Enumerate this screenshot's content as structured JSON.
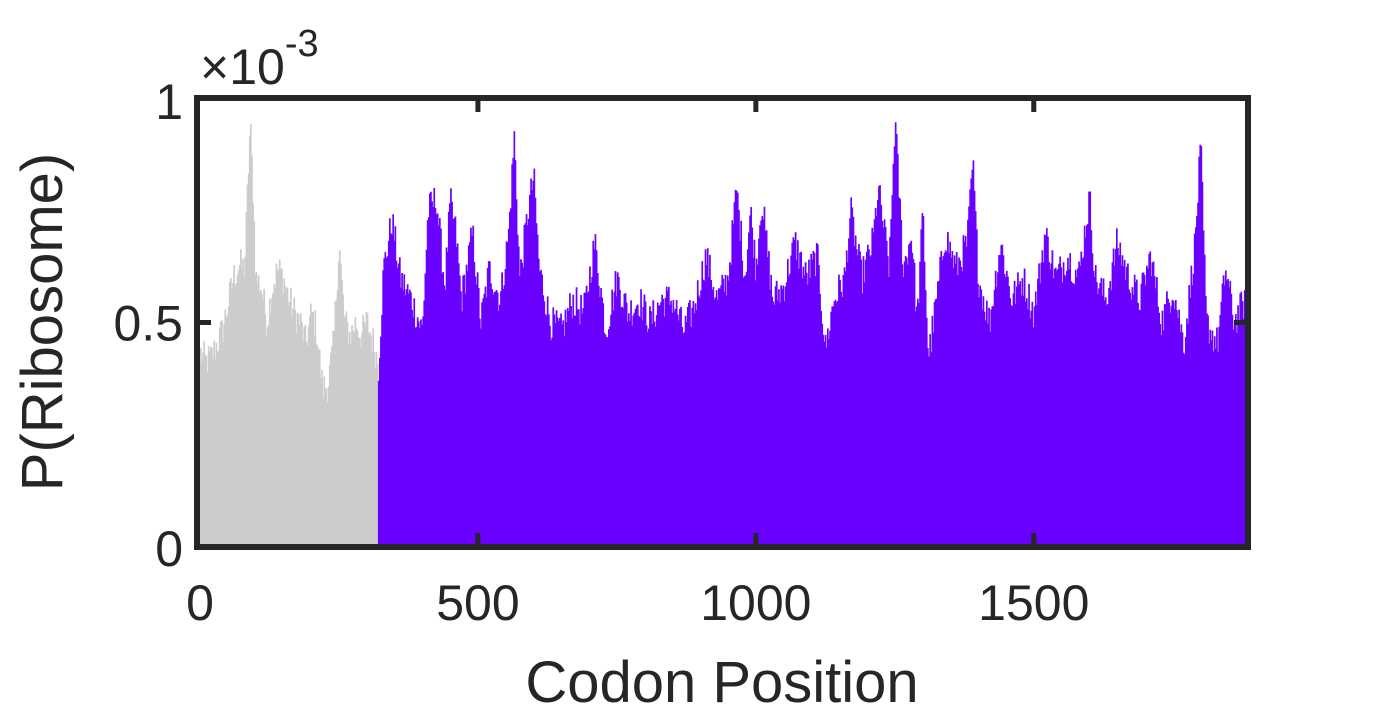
{
  "chart_data": {
    "type": "bar",
    "xlabel": "Codon Position",
    "ylabel": "P(Ribosome)",
    "y_exponent_label": "×10",
    "y_exponent_power": "-3",
    "xlim": [
      0,
      1880
    ],
    "ylim": [
      0,
      1
    ],
    "x_ticks": [
      0,
      500,
      1000,
      1500
    ],
    "x_tick_labels": [
      "0",
      "500",
      "1000",
      "1500"
    ],
    "y_ticks": [
      0,
      0.5,
      1
    ],
    "y_tick_labels": [
      "0",
      "0.5",
      "1"
    ],
    "grid": false,
    "legend": false,
    "series": [
      {
        "color": "#cccccc",
        "x_range": [
          1,
          320
        ],
        "control_points": [
          [
            1,
            0.43
          ],
          [
            10,
            0.41
          ],
          [
            20,
            0.42
          ],
          [
            30,
            0.45
          ],
          [
            40,
            0.48
          ],
          [
            50,
            0.54
          ],
          [
            60,
            0.6
          ],
          [
            70,
            0.63
          ],
          [
            80,
            0.62
          ],
          [
            90,
            0.95
          ],
          [
            95,
            0.8
          ],
          [
            100,
            0.6
          ],
          [
            110,
            0.58
          ],
          [
            120,
            0.5
          ],
          [
            130,
            0.58
          ],
          [
            140,
            0.62
          ],
          [
            150,
            0.6
          ],
          [
            160,
            0.55
          ],
          [
            170,
            0.52
          ],
          [
            180,
            0.5
          ],
          [
            190,
            0.45
          ],
          [
            200,
            0.52
          ],
          [
            210,
            0.48
          ],
          [
            220,
            0.35
          ],
          [
            230,
            0.36
          ],
          [
            240,
            0.45
          ],
          [
            250,
            0.68
          ],
          [
            255,
            0.58
          ],
          [
            260,
            0.5
          ],
          [
            270,
            0.47
          ],
          [
            280,
            0.5
          ],
          [
            290,
            0.47
          ],
          [
            300,
            0.5
          ],
          [
            310,
            0.46
          ],
          [
            320,
            0.41
          ]
        ]
      },
      {
        "color": "#6a00ff",
        "x_range": [
          321,
          1880
        ],
        "control_points": [
          [
            321,
            0.4
          ],
          [
            330,
            0.62
          ],
          [
            345,
            0.73
          ],
          [
            360,
            0.6
          ],
          [
            380,
            0.55
          ],
          [
            400,
            0.48
          ],
          [
            410,
            0.75
          ],
          [
            425,
            0.78
          ],
          [
            440,
            0.58
          ],
          [
            450,
            0.77
          ],
          [
            460,
            0.7
          ],
          [
            470,
            0.55
          ],
          [
            490,
            0.7
          ],
          [
            505,
            0.5
          ],
          [
            520,
            0.62
          ],
          [
            540,
            0.55
          ],
          [
            555,
            0.7
          ],
          [
            565,
            0.92
          ],
          [
            575,
            0.6
          ],
          [
            590,
            0.75
          ],
          [
            600,
            0.83
          ],
          [
            610,
            0.62
          ],
          [
            630,
            0.5
          ],
          [
            650,
            0.48
          ],
          [
            670,
            0.55
          ],
          [
            690,
            0.52
          ],
          [
            710,
            0.68
          ],
          [
            730,
            0.48
          ],
          [
            750,
            0.6
          ],
          [
            770,
            0.52
          ],
          [
            790,
            0.55
          ],
          [
            810,
            0.5
          ],
          [
            830,
            0.55
          ],
          [
            850,
            0.55
          ],
          [
            870,
            0.48
          ],
          [
            890,
            0.54
          ],
          [
            910,
            0.65
          ],
          [
            930,
            0.55
          ],
          [
            950,
            0.6
          ],
          [
            965,
            0.8
          ],
          [
            980,
            0.6
          ],
          [
            990,
            0.75
          ],
          [
            1000,
            0.62
          ],
          [
            1010,
            0.78
          ],
          [
            1030,
            0.55
          ],
          [
            1050,
            0.58
          ],
          [
            1070,
            0.68
          ],
          [
            1090,
            0.6
          ],
          [
            1110,
            0.65
          ],
          [
            1125,
            0.44
          ],
          [
            1140,
            0.55
          ],
          [
            1160,
            0.6
          ],
          [
            1170,
            0.75
          ],
          [
            1190,
            0.6
          ],
          [
            1210,
            0.68
          ],
          [
            1220,
            0.8
          ],
          [
            1240,
            0.62
          ],
          [
            1250,
            0.96
          ],
          [
            1265,
            0.62
          ],
          [
            1280,
            0.7
          ],
          [
            1290,
            0.5
          ],
          [
            1300,
            0.75
          ],
          [
            1310,
            0.42
          ],
          [
            1325,
            0.55
          ],
          [
            1340,
            0.7
          ],
          [
            1360,
            0.62
          ],
          [
            1380,
            0.68
          ],
          [
            1390,
            0.86
          ],
          [
            1400,
            0.6
          ],
          [
            1420,
            0.5
          ],
          [
            1440,
            0.68
          ],
          [
            1460,
            0.55
          ],
          [
            1480,
            0.6
          ],
          [
            1500,
            0.52
          ],
          [
            1520,
            0.7
          ],
          [
            1540,
            0.6
          ],
          [
            1560,
            0.65
          ],
          [
            1580,
            0.6
          ],
          [
            1600,
            0.78
          ],
          [
            1610,
            0.6
          ],
          [
            1630,
            0.55
          ],
          [
            1650,
            0.68
          ],
          [
            1670,
            0.6
          ],
          [
            1690,
            0.55
          ],
          [
            1710,
            0.65
          ],
          [
            1730,
            0.5
          ],
          [
            1750,
            0.58
          ],
          [
            1770,
            0.45
          ],
          [
            1790,
            0.68
          ],
          [
            1800,
            0.9
          ],
          [
            1810,
            0.5
          ],
          [
            1830,
            0.45
          ],
          [
            1845,
            0.62
          ],
          [
            1860,
            0.5
          ],
          [
            1880,
            0.55
          ]
        ]
      }
    ]
  }
}
